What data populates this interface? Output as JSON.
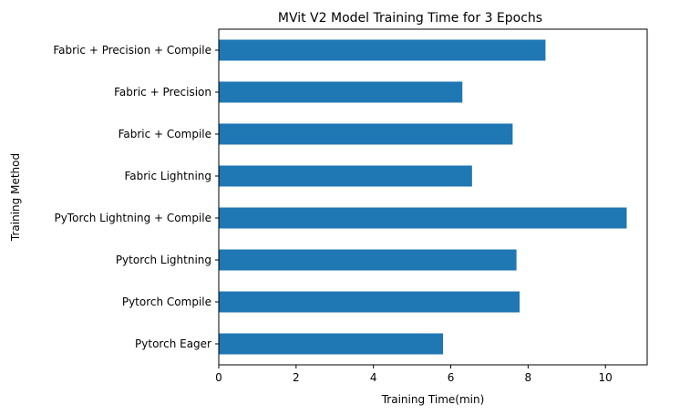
{
  "chart_data": {
    "type": "bar",
    "orientation": "horizontal",
    "title": "MVit V2 Model Training Time for 3 Epochs",
    "xlabel": "Training Time(min)",
    "ylabel": "Training Method",
    "categories": [
      "Pytorch Eager",
      "Pytorch Compile",
      "Pytorch Lightning",
      "PyTorch Lightning + Compile",
      "Fabric Lightning",
      "Fabric + Compile",
      "Fabric + Precision",
      "Fabric + Precision + Compile"
    ],
    "values": [
      5.8,
      7.78,
      7.7,
      10.55,
      6.55,
      7.6,
      6.3,
      8.45
    ],
    "xlim": [
      0,
      11.08
    ],
    "xticks": [
      0,
      2,
      4,
      6,
      8,
      10
    ],
    "xtick_labels": [
      "0",
      "2",
      "4",
      "6",
      "8",
      "10"
    ],
    "bar_color": "#1f77b4",
    "grid": false,
    "legend": "none"
  }
}
